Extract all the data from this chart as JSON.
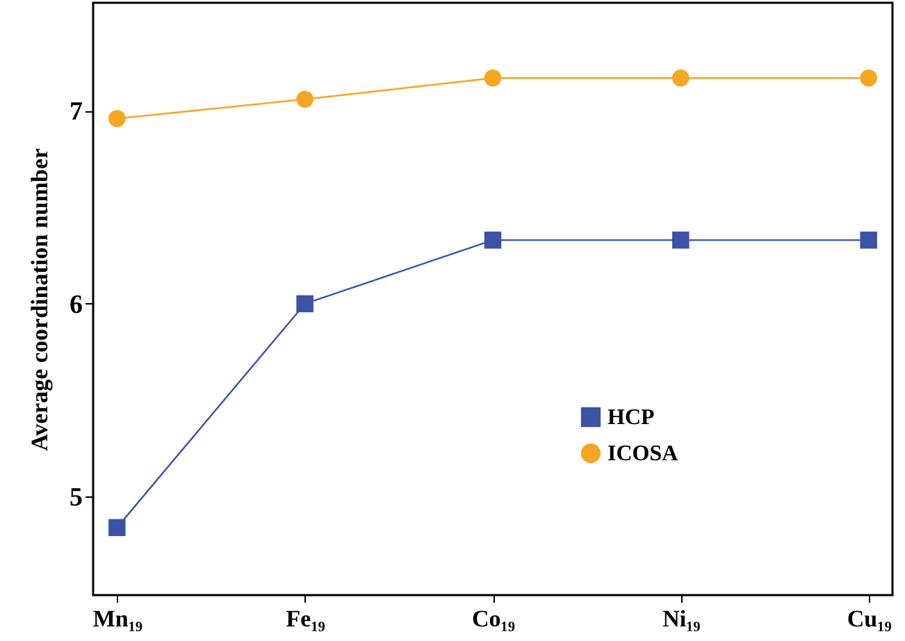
{
  "chart_data": {
    "type": "line",
    "ylabel": "Average coordination number",
    "categories": [
      "Mn₁₉",
      "Fe₁₉",
      "Co₁₉",
      "Ni₁₉",
      "Cu₁₉"
    ],
    "series": [
      {
        "name": "HCP",
        "color": "#3a53a4",
        "marker": "square",
        "values": [
          4.84,
          6.0,
          6.33,
          6.33,
          6.33
        ]
      },
      {
        "name": "ICOSA",
        "color": "#f5a623",
        "marker": "circle",
        "values": [
          6.96,
          7.06,
          7.17,
          7.17,
          7.17
        ]
      }
    ],
    "ylim": [
      4.49,
      7.56
    ],
    "yticks": [
      5,
      6,
      7
    ],
    "grid": false,
    "legend": "right"
  }
}
